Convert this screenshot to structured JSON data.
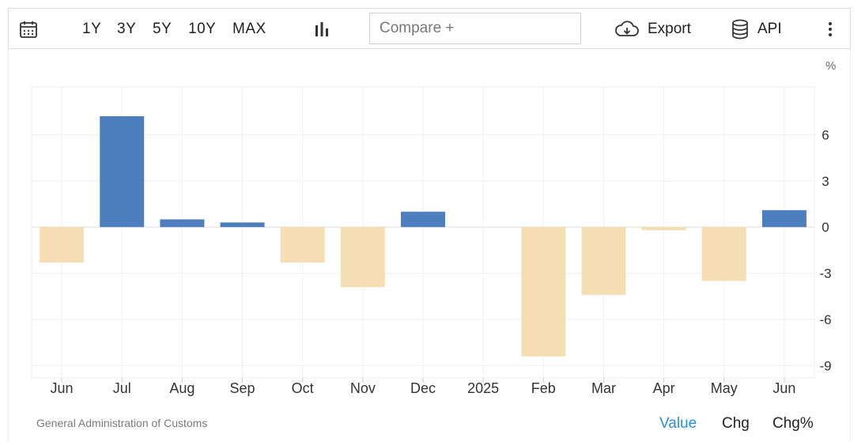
{
  "toolbar": {
    "ranges": [
      "1Y",
      "3Y",
      "5Y",
      "10Y",
      "MAX"
    ],
    "compare_placeholder": "Compare +",
    "export_label": "Export",
    "api_label": "API",
    "icons": [
      "calendar-icon",
      "bar-chart-icon",
      "cloud-download-icon",
      "database-icon",
      "more-vertical-icon"
    ]
  },
  "chart_data": {
    "type": "bar",
    "categories": [
      "Jun",
      "Jul",
      "Aug",
      "Sep",
      "Oct",
      "Nov",
      "Dec",
      "2025",
      "Feb",
      "Mar",
      "Apr",
      "May",
      "Jun"
    ],
    "values": [
      -2.3,
      7.2,
      0.5,
      0.3,
      -2.3,
      -3.9,
      1.0,
      null,
      -8.4,
      -4.4,
      -0.2,
      -3.5,
      1.1
    ],
    "yticks": [
      6,
      3,
      0,
      -3,
      -6,
      -9
    ],
    "ylim": [
      -9.8,
      9.1
    ],
    "unit_label": "%",
    "positive_color": "#4d7fbe",
    "negative_color": "#f5deb3",
    "grid": true
  },
  "footer": {
    "source": "General Administration of Customs",
    "modes": [
      "Value",
      "Chg",
      "Chg%"
    ],
    "active_mode": "Value",
    "active_color": "#2a8fd6"
  }
}
